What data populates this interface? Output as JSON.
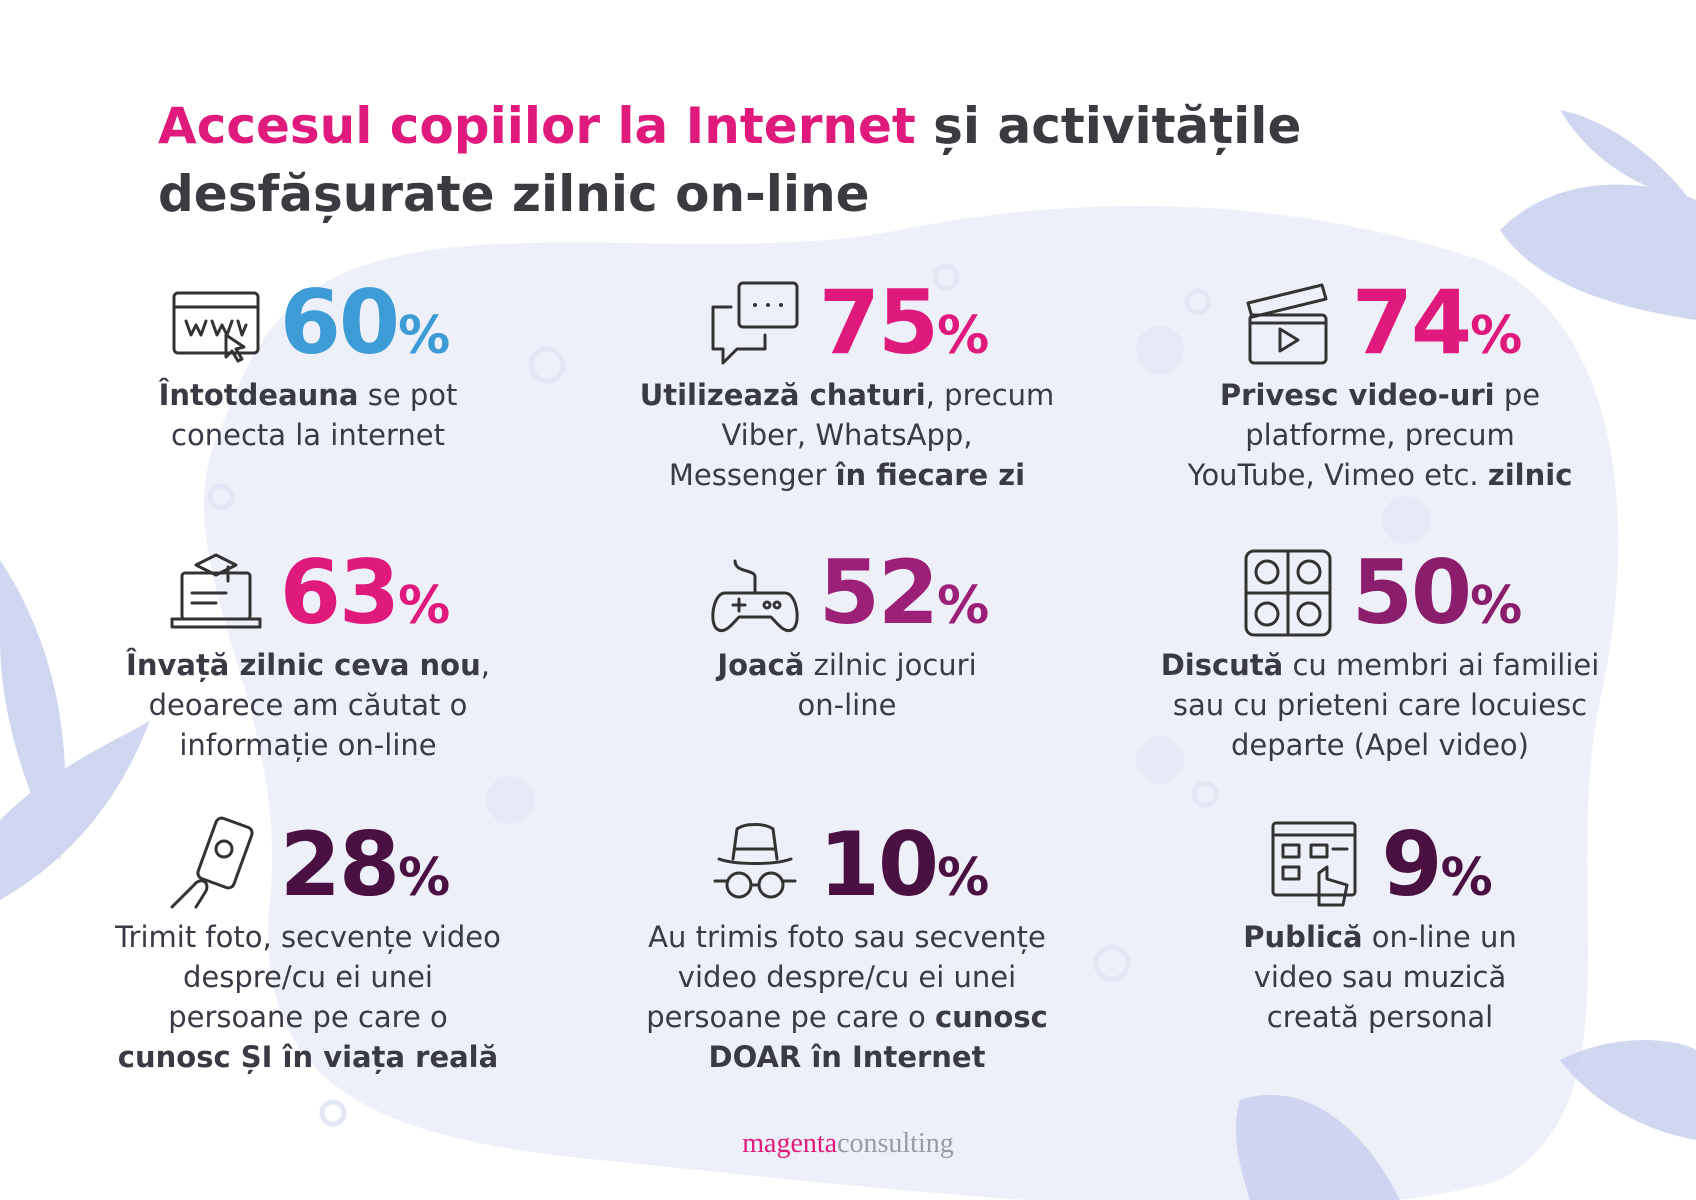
{
  "header": {
    "title_highlight": "Accesul copiilor la Internet",
    "title_rest": " și activitățile desfășurate zilnic on-line"
  },
  "items": [
    {
      "percent": "60",
      "sign": "%",
      "color": "#3d9bd6",
      "lines": [
        [
          {
            "text": "Întotdeauna",
            "bold": true
          },
          {
            "text": " se pot"
          }
        ],
        [
          {
            "text": "conecta la internet"
          }
        ]
      ]
    },
    {
      "percent": "75",
      "sign": "%",
      "color": "#e0197d",
      "lines": [
        [
          {
            "text": "Utilizează chaturi",
            "bold": true
          },
          {
            "text": ", precum"
          }
        ],
        [
          {
            "text": "Viber, WhatsApp,"
          }
        ],
        [
          {
            "text": "Messenger "
          },
          {
            "text": "în fiecare zi",
            "bold": true
          }
        ]
      ]
    },
    {
      "percent": "74",
      "sign": "%",
      "color": "#e0197d",
      "lines": [
        [
          {
            "text": "Privesc video-uri",
            "bold": true
          },
          {
            "text": " pe"
          }
        ],
        [
          {
            "text": "platforme, precum"
          }
        ],
        [
          {
            "text": "YouTube, Vimeo etc. "
          },
          {
            "text": "zilnic",
            "bold": true
          }
        ]
      ]
    },
    {
      "percent": "63",
      "sign": "%",
      "color": "#e0197d",
      "lines": [
        [
          {
            "text": "Învață zilnic ceva nou",
            "bold": true
          },
          {
            "text": ","
          }
        ],
        [
          {
            "text": "deoarece am căutat o"
          }
        ],
        [
          {
            "text": "informație on-line"
          }
        ]
      ]
    },
    {
      "percent": "52",
      "sign": "%",
      "color": "#9c1f78",
      "lines": [
        [
          {
            "text": "Joacă",
            "bold": true
          },
          {
            "text": " zilnic jocuri"
          }
        ],
        [
          {
            "text": "on-line"
          }
        ]
      ]
    },
    {
      "percent": "50",
      "sign": "%",
      "color": "#8a1d6c",
      "lines": [
        [
          {
            "text": "Discută",
            "bold": true
          },
          {
            "text": " cu membri ai familiei"
          }
        ],
        [
          {
            "text": "sau cu prieteni care locuiesc"
          }
        ],
        [
          {
            "text": "departe (Apel video)"
          }
        ]
      ]
    },
    {
      "percent": "28",
      "sign": "%",
      "color": "#4a1042",
      "lines": [
        [
          {
            "text": "Trimit foto, secvențe video"
          }
        ],
        [
          {
            "text": "despre/cu ei unei"
          }
        ],
        [
          {
            "text": "persoane pe care o"
          }
        ],
        [
          {
            "text": "cunosc ȘI în viața reală",
            "bold": true
          }
        ]
      ]
    },
    {
      "percent": "10",
      "sign": "%",
      "color": "#4a1042",
      "lines": [
        [
          {
            "text": "Au trimis foto sau secvențe"
          }
        ],
        [
          {
            "text": "video despre/cu ei unei"
          }
        ],
        [
          {
            "text": "persoane pe care o "
          },
          {
            "text": "cunosc",
            "bold": true
          }
        ],
        [
          {
            "text": "DOAR în Internet",
            "bold": true
          }
        ]
      ]
    },
    {
      "percent": "9",
      "sign": "%",
      "color": "#4a1042",
      "lines": [
        [
          {
            "text": "Publică",
            "bold": true
          },
          {
            "text": " on-line un"
          }
        ],
        [
          {
            "text": "video sau muzică"
          }
        ],
        [
          {
            "text": "creată personal"
          }
        ]
      ]
    }
  ],
  "footer": {
    "brand": "magenta",
    "suffix": "consulting"
  }
}
